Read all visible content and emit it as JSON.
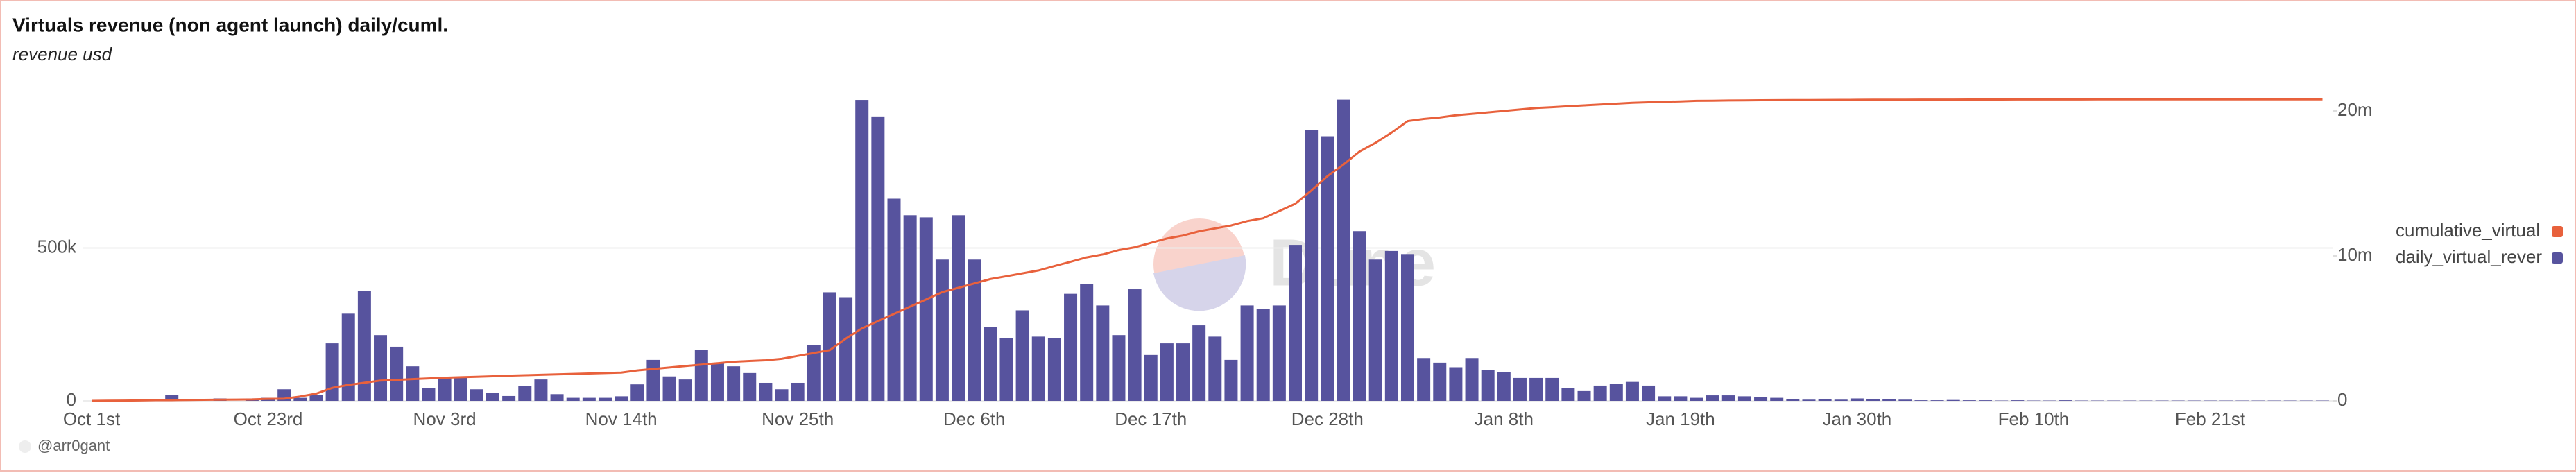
{
  "chart_data": {
    "type": "bar",
    "title": "Virtuals revenue (non agent launch) daily/cuml.",
    "subtitle": "revenue usd",
    "watermark": "Dune",
    "credit": "@arr0gant",
    "categories": [
      "Oct 1st",
      null,
      null,
      null,
      null,
      null,
      null,
      null,
      null,
      null,
      null,
      "Oct 23rd",
      null,
      null,
      null,
      null,
      null,
      null,
      null,
      null,
      null,
      null,
      "Nov 3rd",
      null,
      null,
      null,
      null,
      null,
      null,
      null,
      null,
      null,
      null,
      "Nov 14th",
      null,
      null,
      null,
      null,
      null,
      null,
      null,
      null,
      null,
      null,
      "Nov 25th",
      null,
      null,
      null,
      null,
      null,
      null,
      null,
      null,
      null,
      null,
      "Dec 6th",
      null,
      null,
      null,
      null,
      null,
      null,
      null,
      null,
      null,
      null,
      "Dec 17th",
      null,
      null,
      null,
      null,
      null,
      null,
      null,
      null,
      null,
      null,
      "Dec 28th",
      null,
      null,
      null,
      null,
      null,
      null,
      null,
      null,
      null,
      null,
      "Jan 8th",
      null,
      null,
      null,
      null,
      null,
      null,
      null,
      null,
      null,
      null,
      "Jan 19th",
      null,
      null,
      null,
      null,
      null,
      null,
      null,
      null,
      null,
      null,
      "Jan 30th",
      null,
      null,
      null,
      null,
      null,
      null,
      null,
      null,
      null,
      null,
      "Feb 10th",
      null,
      null,
      null,
      null,
      null,
      null,
      null,
      null,
      null,
      null,
      "Feb 21st",
      null,
      null,
      null,
      null,
      null,
      null,
      null
    ],
    "series": [
      {
        "name": "cumulative_virtual",
        "type": "line",
        "axis": "y2",
        "color": "#e8613c",
        "values": [
          0,
          10000,
          20000,
          30000,
          50000,
          50000,
          60000,
          70000,
          80000,
          90000,
          100000,
          140000,
          150000,
          300000,
          500000,
          900000,
          1100000,
          1250000,
          1400000,
          1450000,
          1500000,
          1550000,
          1600000,
          1630000,
          1660000,
          1700000,
          1740000,
          1770000,
          1800000,
          1830000,
          1860000,
          1890000,
          1920000,
          1950000,
          2100000,
          2200000,
          2300000,
          2400000,
          2500000,
          2600000,
          2700000,
          2750000,
          2800000,
          2900000,
          3100000,
          3300000,
          3500000,
          4300000,
          5000000,
          5500000,
          6000000,
          6500000,
          7000000,
          7500000,
          7800000,
          8100000,
          8400000,
          8600000,
          8800000,
          9000000,
          9300000,
          9600000,
          9900000,
          10100000,
          10400000,
          10600000,
          10900000,
          11200000,
          11400000,
          11700000,
          11900000,
          12100000,
          12400000,
          12600000,
          13100000,
          13600000,
          14500000,
          15500000,
          16300000,
          17200000,
          17800000,
          18500000,
          19300000,
          19450000,
          19550000,
          19700000,
          19800000,
          19900000,
          20000000,
          20100000,
          20200000,
          20260000,
          20320000,
          20380000,
          20440000,
          20500000,
          20560000,
          20600000,
          20630000,
          20660000,
          20700000,
          20710000,
          20720000,
          20730000,
          20740000,
          20745000,
          20750000,
          20755000,
          20760000,
          20765000,
          20770000,
          20775000,
          20778000,
          20780000,
          20782000,
          20784000,
          20786000,
          20788000,
          20790000,
          20791000,
          20792000,
          20793000,
          20794000,
          20795000,
          20796000,
          20797000,
          20798000,
          20799000,
          20800000,
          20800000,
          20800000,
          20800000,
          20800000,
          20800000,
          20800000,
          20800000,
          20800000,
          20800000,
          20800000,
          20800000
        ]
      },
      {
        "name": "daily_virtual_rever",
        "type": "bar",
        "color": "#57539e",
        "values": [
          0,
          0,
          0,
          0,
          0,
          20000,
          0,
          0,
          8000,
          0,
          8000,
          10000,
          38000,
          10000,
          20000,
          188000,
          285000,
          360000,
          215000,
          177000,
          113000,
          43000,
          75000,
          75000,
          38000,
          27000,
          16000,
          48000,
          70000,
          22000,
          10000,
          10000,
          10000,
          15000,
          54000,
          134000,
          80000,
          70000,
          167000,
          124000,
          113000,
          91000,
          59000,
          38000,
          59000,
          183000,
          355000,
          339000,
          984000,
          930000,
          661000,
          607000,
          600000,
          462000,
          607000,
          462000,
          242000,
          205000,
          296000,
          210000,
          205000,
          350000,
          382000,
          312000,
          215000,
          365000,
          150000,
          188000,
          188000,
          247000,
          210000,
          134000,
          312000,
          300000,
          312000,
          510000,
          885000,
          865000,
          985000,
          555000,
          462000,
          490000,
          480000,
          140000,
          125000,
          110000,
          140000,
          100000,
          95000,
          75000,
          75000,
          75000,
          43000,
          32000,
          50000,
          55000,
          62000,
          50000,
          15000,
          15000,
          10000,
          18000,
          18000,
          15000,
          12000,
          10000,
          5000,
          4000,
          6000,
          4000,
          8000,
          6000,
          5000,
          4000,
          2000,
          2000,
          3000,
          2000,
          2000,
          1000,
          2000,
          1000,
          1000,
          2000,
          1000,
          1000,
          1000,
          1000,
          1000,
          1000,
          1000,
          1000,
          1000,
          1000,
          1000,
          1000,
          1000,
          1000,
          1000,
          1000
        ]
      }
    ],
    "ylim": [
      0,
      1000000
    ],
    "yticks": [
      0,
      {
        "value": 500000,
        "label": "500k"
      }
    ],
    "y2lim": [
      0,
      21100000
    ],
    "y2ticks": [
      0,
      {
        "value": 10000000,
        "label": "10m"
      },
      {
        "value": 20000000,
        "label": "20m"
      }
    ],
    "grid": true,
    "legend": "right"
  }
}
